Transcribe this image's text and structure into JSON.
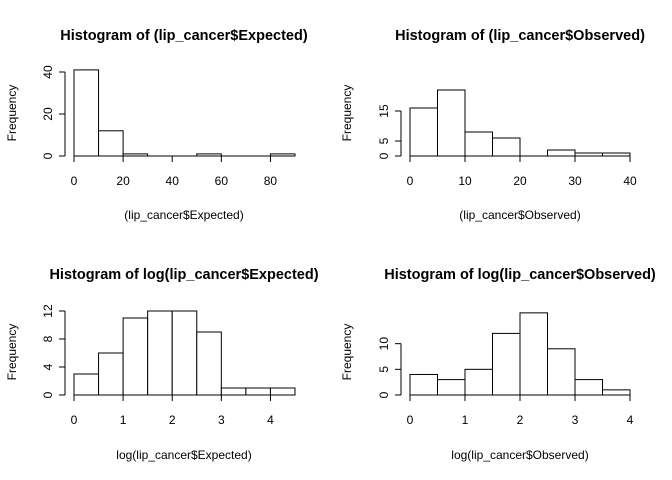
{
  "chart_data": [
    {
      "type": "bar",
      "title": "Histogram of (lip_cancer$Expected)",
      "xlabel": "(lip_cancer$Expected)",
      "ylabel": "Frequency",
      "bin_edges": [
        0,
        10,
        20,
        30,
        40,
        50,
        60,
        70,
        80,
        90
      ],
      "values": [
        41,
        12,
        1,
        0,
        0,
        1,
        0,
        0,
        1
      ],
      "xlim": [
        0,
        90
      ],
      "ylim": [
        0,
        40
      ],
      "xticks": [
        0,
        20,
        40,
        60,
        80
      ],
      "yticks": [
        0,
        20,
        40
      ],
      "grid": false
    },
    {
      "type": "bar",
      "title": "Histogram of (lip_cancer$Observed)",
      "xlabel": "(lip_cancer$Observed)",
      "ylabel": "Frequency",
      "bin_edges": [
        0,
        5,
        10,
        15,
        20,
        25,
        30,
        35,
        40
      ],
      "values": [
        16,
        22,
        8,
        6,
        0,
        2,
        1,
        1
      ],
      "xlim": [
        0,
        40
      ],
      "ylim": [
        0,
        20
      ],
      "xticks": [
        0,
        10,
        20,
        30,
        40
      ],
      "yticks": [
        0,
        5,
        15
      ],
      "grid": false
    },
    {
      "type": "bar",
      "title": "Histogram of log(lip_cancer$Expected)",
      "xlabel": "log(lip_cancer$Expected)",
      "ylabel": "Frequency",
      "bin_edges": [
        0,
        0.5,
        1,
        1.5,
        2,
        2.5,
        3,
        3.5,
        4,
        4.5
      ],
      "values": [
        3,
        6,
        11,
        12,
        12,
        9,
        1,
        1,
        1
      ],
      "xlim": [
        0,
        4.5
      ],
      "ylim": [
        0,
        12
      ],
      "xticks": [
        0,
        1,
        2,
        3,
        4
      ],
      "yticks": [
        0,
        4,
        8,
        12
      ],
      "grid": false
    },
    {
      "type": "bar",
      "title": "Histogram of log(lip_cancer$Observed)",
      "xlabel": "log(lip_cancer$Observed)",
      "ylabel": "Frequency",
      "bin_edges": [
        0,
        0.5,
        1,
        1.5,
        2,
        2.5,
        3,
        3.5,
        4
      ],
      "values": [
        4,
        3,
        5,
        12,
        16,
        9,
        3,
        1
      ],
      "xlim": [
        0,
        4
      ],
      "ylim": [
        0,
        15
      ],
      "xticks": [
        0,
        1,
        2,
        3,
        4
      ],
      "yticks": [
        0,
        5,
        10
      ],
      "grid": false
    }
  ]
}
